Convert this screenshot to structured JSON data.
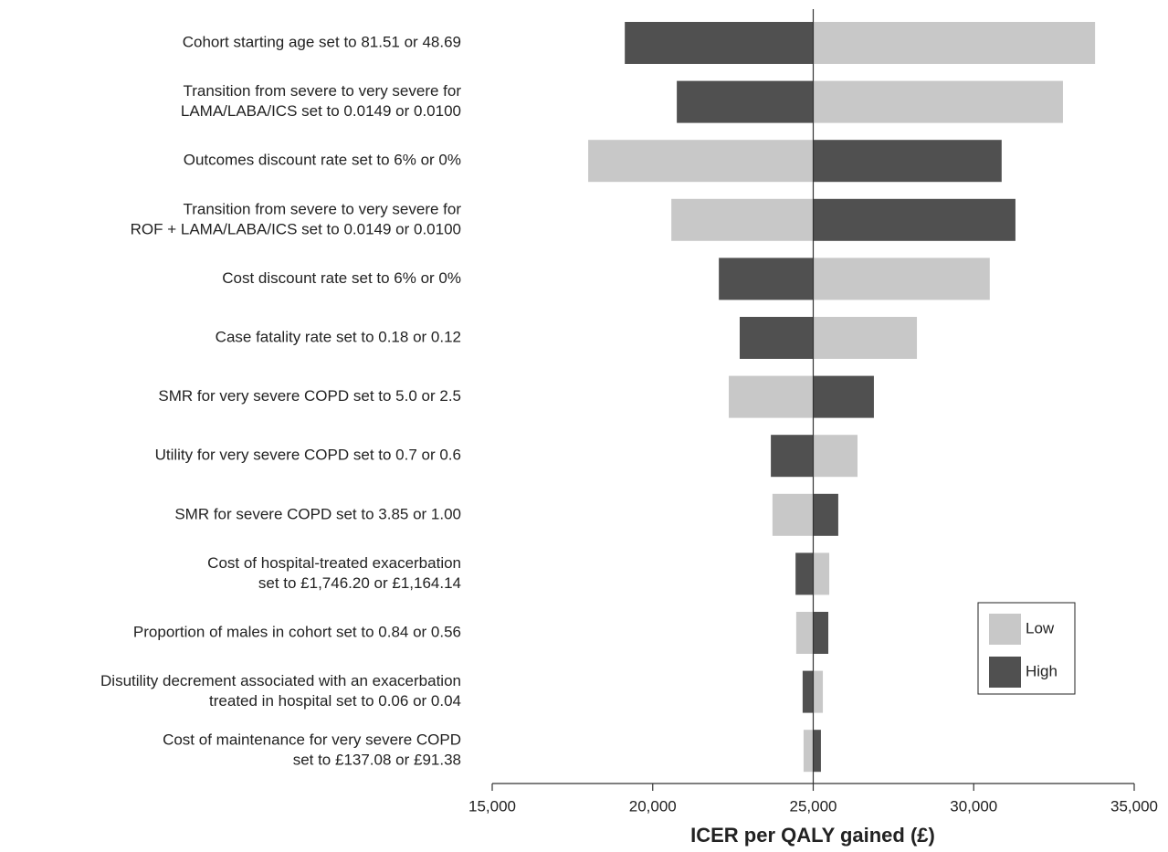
{
  "chart_data": {
    "type": "tornado",
    "xlabel": "ICER per QALY gained (£)",
    "base": 25000,
    "categories": [
      [
        "Cohort starting age set to 81.51 or 48.69"
      ],
      [
        "Transition from severe to very severe for",
        "LAMA/LABA/ICS set to 0.0149 or 0.0100"
      ],
      [
        "Outcomes discount rate set to 6% or 0%"
      ],
      [
        "Transition from severe to very severe for",
        "ROF + LAMA/LABA/ICS set to 0.0149 or 0.0100"
      ],
      [
        "Cost discount rate set to 6% or 0%"
      ],
      [
        "Case fatality rate set to 0.18 or 0.12"
      ],
      [
        "SMR for very severe COPD set to 5.0 or 2.5"
      ],
      [
        "Utility for very severe COPD set to 0.7 or 0.6"
      ],
      [
        "SMR for severe COPD set to 3.85 or 1.00"
      ],
      [
        "Cost of hospital-treated exacerbation",
        "set to £1,746.20 or £1,164.14"
      ],
      [
        "Proportion of males in cohort set to 0.84 or 0.56"
      ],
      [
        "Disutility decrement associated with an exacerbation",
        "treated in hospital set to 0.06 or 0.04"
      ],
      [
        "Cost of maintenance for very severe COPD",
        "set to £137.08 or £91.38"
      ]
    ],
    "series": [
      {
        "name": "Low",
        "color": "#c8c8c8",
        "values": [
          33780,
          32780,
          17990,
          20580,
          30500,
          28230,
          22370,
          26380,
          23730,
          25500,
          24470,
          25300,
          24700
        ]
      },
      {
        "name": "High",
        "color": "#505050",
        "values": [
          19130,
          20750,
          30870,
          31300,
          22060,
          22710,
          26890,
          23680,
          25780,
          24450,
          25470,
          24670,
          25240
        ]
      }
    ],
    "xlim": [
      15000,
      35000
    ],
    "xticks": [
      {
        "value": 15000,
        "label": "15,000"
      },
      {
        "value": 20000,
        "label": "20,000"
      },
      {
        "value": 25000,
        "label": "25,000"
      },
      {
        "value": 30000,
        "label": "30,000"
      },
      {
        "value": 35000,
        "label": "35,000"
      }
    ],
    "legend": "lower-right"
  }
}
